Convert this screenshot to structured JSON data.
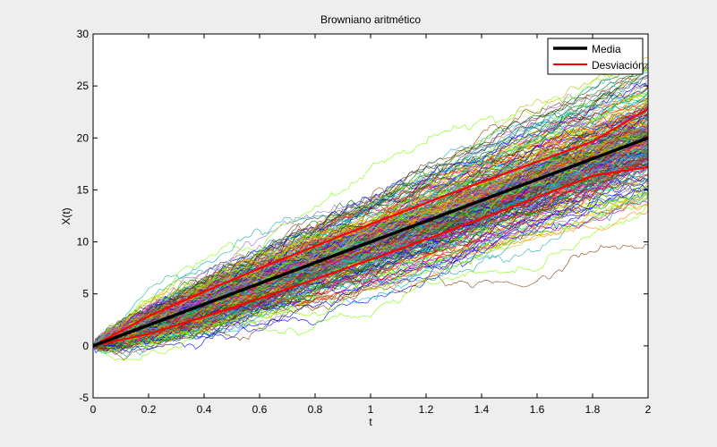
{
  "chart_data": {
    "type": "line",
    "title": "Browniano aritmético",
    "xlabel": "t",
    "ylabel": "X(t)",
    "xlim": [
      0,
      2
    ],
    "ylim": [
      -5,
      30
    ],
    "xticks": [
      0,
      0.2,
      0.4,
      0.6,
      0.8,
      1,
      1.2,
      1.4,
      1.6,
      1.8,
      2
    ],
    "xtick_labels": [
      "0",
      "0.2",
      "0.4",
      "0.6",
      "0.8",
      "1",
      "1.2",
      "1.4",
      "1.6",
      "1.8",
      "2"
    ],
    "yticks": [
      -5,
      0,
      5,
      10,
      15,
      20,
      25,
      30
    ],
    "ytick_labels": [
      "-5",
      "0",
      "5",
      "10",
      "15",
      "20",
      "25",
      "30"
    ],
    "grid": false,
    "legend_position": "top-right",
    "mean_line": {
      "name": "Media",
      "color": "#000000",
      "x": [
        0,
        2
      ],
      "y": [
        0,
        20
      ]
    },
    "deviation_lines": {
      "name": "Desviación",
      "color": "#ff0000",
      "x": [
        0,
        0.2,
        0.4,
        0.6,
        0.8,
        1,
        1.2,
        1.4,
        1.6,
        1.8,
        2
      ],
      "upper": [
        0,
        2.85,
        5.2,
        7.45,
        9.6,
        11.7,
        13.75,
        15.75,
        17.7,
        19.65,
        22.8
      ],
      "lower": [
        0,
        1.15,
        2.8,
        4.55,
        6.4,
        8.3,
        10.25,
        12.25,
        14.3,
        16.35,
        17.2
      ]
    },
    "paths": {
      "count": 300,
      "drift": 10,
      "sigma": 2,
      "steps": 200,
      "colors": [
        "#0000ff",
        "#008000",
        "#ff0000",
        "#00bfbf",
        "#bf00bf",
        "#bfbf00",
        "#404040",
        "#ff8c00",
        "#8b4513",
        "#7fff00",
        "#9370db",
        "#20b2aa"
      ]
    }
  }
}
